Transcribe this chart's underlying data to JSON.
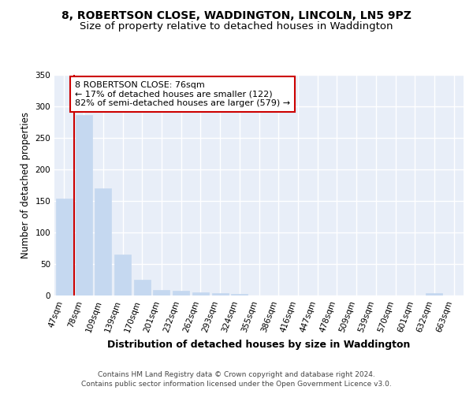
{
  "title1": "8, ROBERTSON CLOSE, WADDINGTON, LINCOLN, LN5 9PZ",
  "title2": "Size of property relative to detached houses in Waddington",
  "xlabel": "Distribution of detached houses by size in Waddington",
  "ylabel": "Number of detached properties",
  "categories": [
    "47sqm",
    "78sqm",
    "109sqm",
    "139sqm",
    "170sqm",
    "201sqm",
    "232sqm",
    "262sqm",
    "293sqm",
    "324sqm",
    "355sqm",
    "386sqm",
    "416sqm",
    "447sqm",
    "478sqm",
    "509sqm",
    "539sqm",
    "570sqm",
    "601sqm",
    "632sqm",
    "663sqm"
  ],
  "values": [
    154,
    286,
    170,
    65,
    25,
    9,
    7,
    5,
    4,
    3,
    0,
    0,
    0,
    0,
    0,
    0,
    0,
    0,
    0,
    4,
    0
  ],
  "bar_color": "#c5d8f0",
  "bar_edgecolor": "#c5d8f0",
  "vline_x_index": 1,
  "annotation_text": "8 ROBERTSON CLOSE: 76sqm\n← 17% of detached houses are smaller (122)\n82% of semi-detached houses are larger (579) →",
  "annotation_box_color": "#ffffff",
  "annotation_box_edgecolor": "#cc0000",
  "vline_color": "#cc0000",
  "ylim": [
    0,
    350
  ],
  "yticks": [
    0,
    50,
    100,
    150,
    200,
    250,
    300,
    350
  ],
  "background_color": "#e8eef8",
  "grid_color": "#ffffff",
  "footer_text": "Contains HM Land Registry data © Crown copyright and database right 2024.\nContains public sector information licensed under the Open Government Licence v3.0.",
  "title1_fontsize": 10,
  "title2_fontsize": 9.5,
  "xlabel_fontsize": 9,
  "ylabel_fontsize": 8.5,
  "tick_fontsize": 7.5,
  "annotation_fontsize": 8,
  "footer_fontsize": 6.5
}
